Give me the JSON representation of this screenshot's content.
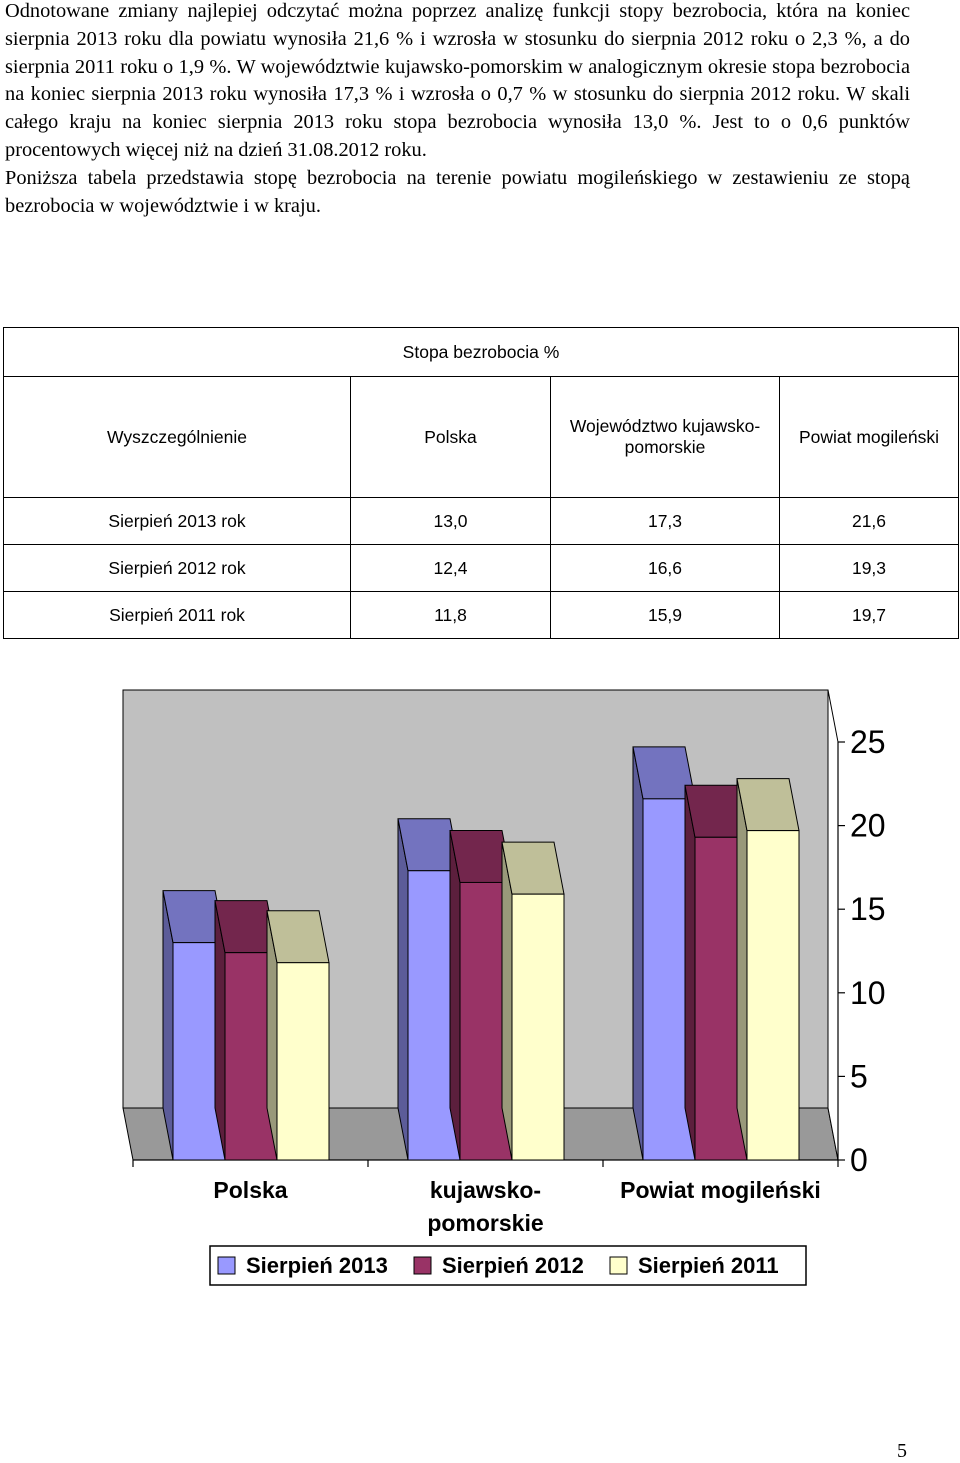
{
  "intro": {
    "p1": "Odnotowane zmiany najlepiej odczytać można poprzez analizę funkcji stopy bezrobocia, która na koniec sierpnia 2013 roku dla powiatu wynosiła 21,6 % i wzrosła w stosunku do sierpnia 2012 roku o 2,3 %, a do sierpnia 2011 roku o 1,9 %. W województwie kujawsko-pomorskim w analogicznym okresie stopa bezrobocia na koniec sierpnia 2013 roku wynosiła 17,3 % i wzrosła o 0,7 % w stosunku do sierpnia 2012 roku. W skali całego kraju na koniec sierpnia 2013 roku stopa bezrobocia wynosiła 13,0 %. Jest to o 0,6 punktów procentowych więcej niż na dzień 31.08.2012 roku.",
    "p2": "Poniższa tabela przedstawia stopę bezrobocia na terenie powiatu mogileńskiego w zestawieniu ze stopą bezrobocia w województwie i w kraju."
  },
  "table": {
    "title": "Stopa bezrobocia %",
    "headers": [
      "Wyszczególnienie",
      "Polska",
      "Województwo kujawsko-pomorskie",
      "Powiat mogileński"
    ],
    "rows": [
      [
        "Sierpień 2013 rok",
        "13,0",
        "17,3",
        "21,6"
      ],
      [
        "Sierpień 2012 rok",
        "12,4",
        "16,6",
        "19,3"
      ],
      [
        "Sierpień 2011 rok",
        "11,8",
        "15,9",
        "19,7"
      ]
    ]
  },
  "chart_data": {
    "type": "bar",
    "categories": [
      "Polska",
      "kujawsko-pomorskie",
      "Powiat mogileński"
    ],
    "category_lines": [
      [
        "Polska"
      ],
      [
        "kujawsko-",
        "pomorskie"
      ],
      [
        "Powiat mogileński"
      ]
    ],
    "series": [
      {
        "name": "Sierpień 2013",
        "values": [
          13.0,
          17.3,
          21.6
        ],
        "color": "#9999FF"
      },
      {
        "name": "Sierpień 2012",
        "values": [
          12.4,
          16.6,
          19.3
        ],
        "color": "#993366"
      },
      {
        "name": "Sierpień 2011",
        "values": [
          11.8,
          15.9,
          19.7
        ],
        "color": "#FFFFCC"
      }
    ],
    "ylim": [
      0,
      25
    ],
    "yticks": [
      "0",
      "5",
      "10",
      "15",
      "20",
      "25"
    ],
    "legend": "bottom",
    "grid": false,
    "wall_color": "#C0C0C0",
    "floor_color": "#999999"
  },
  "page_number": "5"
}
